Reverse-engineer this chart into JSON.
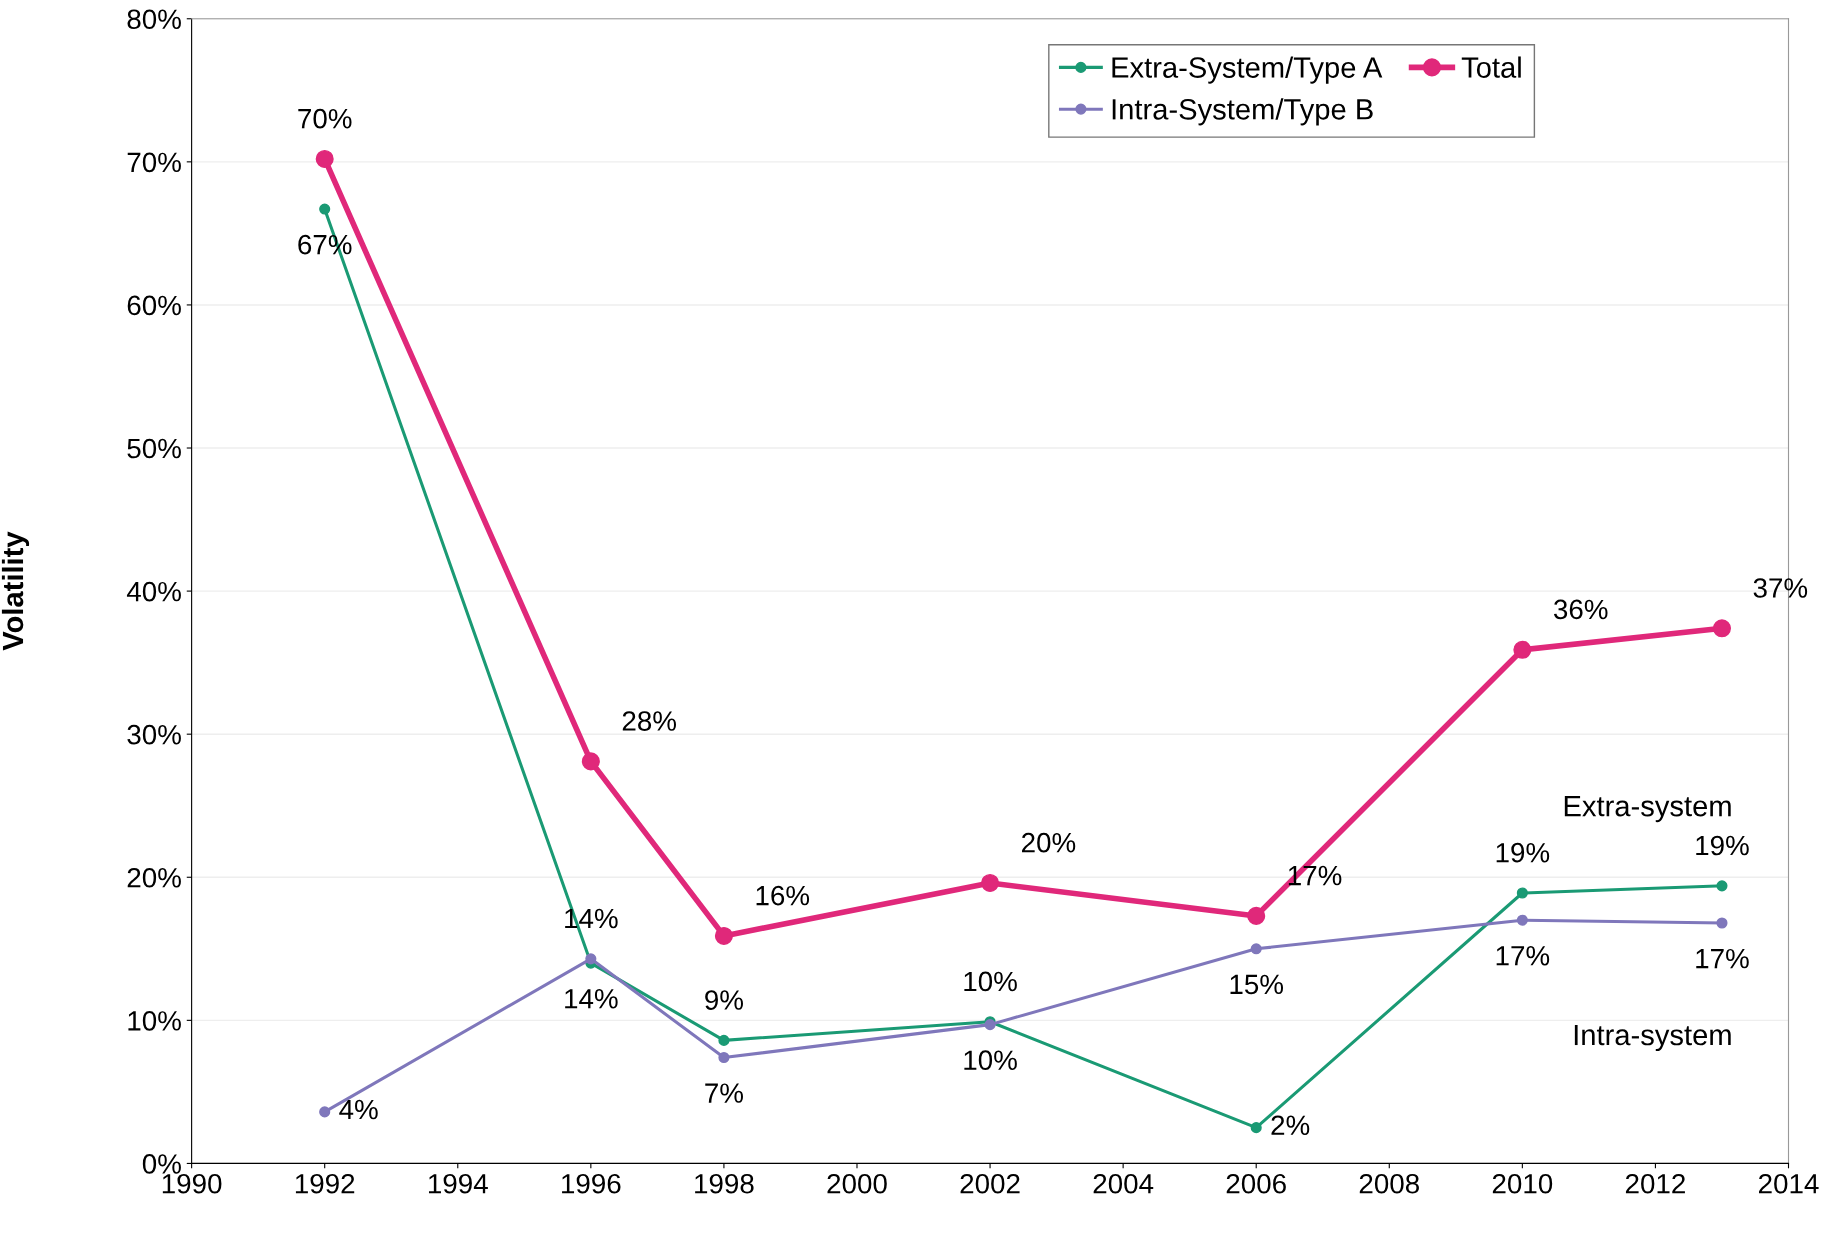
{
  "chart_data": {
    "type": "line",
    "ylabel": "Volatility",
    "x": [
      1992,
      1996,
      1998,
      2002,
      2006,
      2010,
      2013
    ],
    "series": [
      {
        "name": "Extra-System/Type A",
        "color": "#1a9a74",
        "values": [
          66.7,
          14.0,
          8.6,
          9.9,
          2.5,
          18.9,
          19.4
        ],
        "value_labels": [
          "67%",
          "14%",
          "9%",
          "10%",
          "2%",
          "19%",
          "19%"
        ]
      },
      {
        "name": "Intra-System/Type B",
        "color": "#7f77bb",
        "values": [
          3.6,
          14.3,
          7.4,
          9.7,
          15.0,
          17.0,
          16.8
        ],
        "value_labels": [
          "4%",
          "14%",
          "7%",
          "10%",
          "15%",
          "17%",
          "17%"
        ]
      },
      {
        "name": "Total",
        "color": "#e0287a",
        "values": [
          70.2,
          28.1,
          15.9,
          19.6,
          17.3,
          35.9,
          37.4
        ],
        "value_labels": [
          "70%",
          "28%",
          "16%",
          "20%",
          "17%",
          "36%",
          "37%"
        ]
      }
    ],
    "xlim": [
      1990,
      2014
    ],
    "xticks": [
      1990,
      1992,
      1994,
      1996,
      1998,
      2000,
      2002,
      2004,
      2006,
      2008,
      2010,
      2012,
      2014
    ],
    "ylim": [
      0,
      80
    ],
    "yticks": [
      {
        "value": 0,
        "label": "0%"
      },
      {
        "value": 10,
        "label": "10%"
      },
      {
        "value": 20,
        "label": "20%"
      },
      {
        "value": 30,
        "label": "30%"
      },
      {
        "value": 40,
        "label": "40%"
      },
      {
        "value": 50,
        "label": "50%"
      },
      {
        "value": 60,
        "label": "60%"
      },
      {
        "value": 70,
        "label": "70%"
      },
      {
        "value": 80,
        "label": "80%"
      }
    ],
    "annotations": [
      "Extra-system",
      "Intra-system"
    ],
    "grid": "y",
    "legend": "top right",
    "marker": "circle",
    "line_style": "solid"
  }
}
